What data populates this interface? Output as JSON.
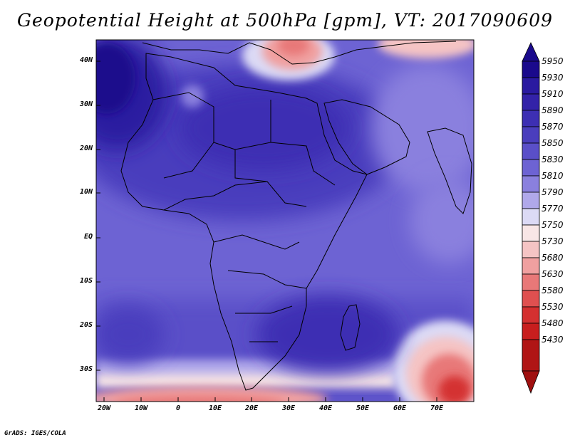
{
  "title": "Geopotential Height at 500hPa [gpm], VT: 2017090609",
  "footer": "GrADS: IGES/COLA",
  "map": {
    "variable": "Geopotential Height at 500hPa",
    "units": "gpm",
    "valid_time": "2017090609",
    "lon_range": [
      -22,
      80
    ],
    "lat_range": [
      -37,
      45
    ],
    "lat_labels": [
      "40N",
      "30N",
      "20N",
      "10N",
      "EQ",
      "10S",
      "20S",
      "30S"
    ],
    "lat_values": [
      40,
      30,
      20,
      10,
      0,
      -10,
      -20,
      -30
    ],
    "lon_labels": [
      "20W",
      "10W",
      "0",
      "10E",
      "20E",
      "30E",
      "40E",
      "50E",
      "60E",
      "70E"
    ],
    "lon_values": [
      -20,
      -10,
      0,
      10,
      20,
      30,
      40,
      50,
      60,
      70
    ]
  },
  "colorbar": {
    "levels": [
      "5950",
      "5930",
      "5910",
      "5890",
      "5870",
      "5850",
      "5830",
      "5810",
      "5790",
      "5770",
      "5750",
      "5730",
      "5680",
      "5630",
      "5580",
      "5530",
      "5480",
      "5430"
    ],
    "colors": [
      "#1a0a8c",
      "#2a1aa0",
      "#3322a8",
      "#3d2fb3",
      "#4a3ebd",
      "#5a4fc8",
      "#6d63d3",
      "#8a80de",
      "#b0a8ea",
      "#dcdaf5",
      "#f8e6e6",
      "#f5c4c4",
      "#f0a0a0",
      "#e87878",
      "#df5050",
      "#d43030",
      "#c81e1e",
      "#a01010"
    ]
  },
  "colors": {
    "ocean_base": "#6d63d3",
    "sahara_high": "#4a3ebd",
    "north_west_high": "#2a1aa0",
    "mediterranean_low": "#f0a0a0",
    "southern_low": "#df5050",
    "south_indian_low": "#e87878",
    "arabia": "#8a80de"
  }
}
